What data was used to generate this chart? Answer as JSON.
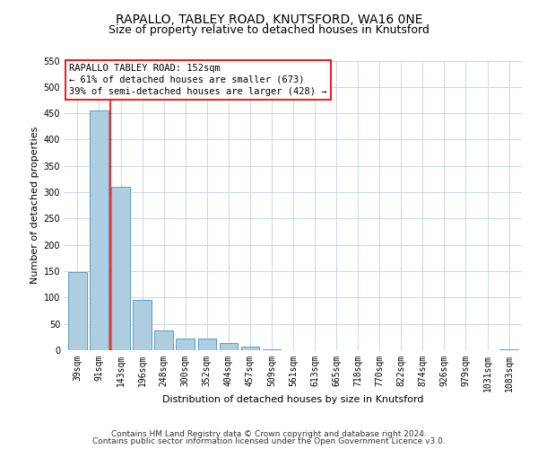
{
  "title": "RAPALLO, TABLEY ROAD, KNUTSFORD, WA16 0NE",
  "subtitle": "Size of property relative to detached houses in Knutsford",
  "xlabel": "Distribution of detached houses by size in Knutsford",
  "ylabel": "Number of detached properties",
  "footer_line1": "Contains HM Land Registry data © Crown copyright and database right 2024.",
  "footer_line2": "Contains public sector information licensed under the Open Government Licence v3.0.",
  "annotation_title": "RAPALLO TABLEY ROAD: 152sqm",
  "annotation_line1": "← 61% of detached houses are smaller (673)",
  "annotation_line2": "39% of semi-detached houses are larger (428) →",
  "bar_labels": [
    "39sqm",
    "91sqm",
    "143sqm",
    "196sqm",
    "248sqm",
    "300sqm",
    "352sqm",
    "404sqm",
    "457sqm",
    "509sqm",
    "561sqm",
    "613sqm",
    "665sqm",
    "718sqm",
    "770sqm",
    "822sqm",
    "874sqm",
    "926sqm",
    "979sqm",
    "1031sqm",
    "1083sqm"
  ],
  "bar_values": [
    148,
    455,
    311,
    95,
    38,
    22,
    23,
    13,
    7,
    2,
    0,
    0,
    0,
    0,
    0,
    0,
    0,
    0,
    0,
    0,
    2
  ],
  "bar_color": "#aecde1",
  "bar_edge_color": "#5b9fc0",
  "red_line_index": 2,
  "ylim": [
    0,
    550
  ],
  "yticks": [
    0,
    50,
    100,
    150,
    200,
    250,
    300,
    350,
    400,
    450,
    500,
    550
  ],
  "background_color": "#ffffff",
  "grid_color": "#c8d8e8",
  "title_fontsize": 10,
  "subtitle_fontsize": 9,
  "axis_label_fontsize": 8,
  "tick_fontsize": 7,
  "annotation_fontsize": 7.5,
  "footer_fontsize": 6.5
}
